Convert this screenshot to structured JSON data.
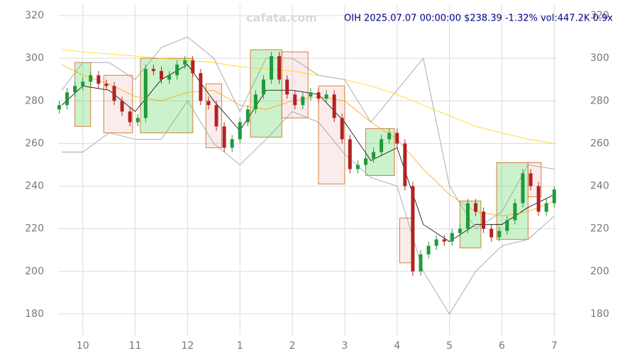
{
  "chart_data": {
    "type": "candlestick",
    "title": "OIH 2025.07.07 00:00:00 $238.39 -1.32% vol:447.2K 0.9x",
    "watermark": "cafata.com",
    "xlim": [
      -0.47,
      9.05
    ],
    "xticks": [
      {
        "value": 0,
        "label": "10"
      },
      {
        "value": 1,
        "label": "11"
      },
      {
        "value": 2,
        "label": "12"
      },
      {
        "value": 3,
        "label": "1"
      },
      {
        "value": 4,
        "label": "2"
      },
      {
        "value": 5,
        "label": "3"
      },
      {
        "value": 6,
        "label": "4"
      },
      {
        "value": 7,
        "label": "5"
      },
      {
        "value": 8,
        "label": "6"
      },
      {
        "value": 9,
        "label": "7"
      }
    ],
    "ylim": [
      170,
      325
    ],
    "yticks": [
      180,
      200,
      220,
      240,
      260,
      280,
      300,
      320
    ],
    "grid": true,
    "up_color": "#1f9a3a",
    "down_color": "#b22222",
    "x": [
      -0.45,
      -0.3,
      -0.15,
      0,
      0.15,
      0.3,
      0.45,
      0.6,
      0.75,
      0.9,
      1.05,
      1.2,
      1.35,
      1.5,
      1.65,
      1.8,
      1.95,
      2.1,
      2.25,
      2.4,
      2.55,
      2.7,
      2.85,
      3.0,
      3.15,
      3.3,
      3.45,
      3.6,
      3.75,
      3.9,
      4.05,
      4.2,
      4.35,
      4.5,
      4.65,
      4.8,
      4.95,
      5.1,
      5.25,
      5.4,
      5.55,
      5.7,
      5.85,
      6.0,
      6.15,
      6.3,
      6.45,
      6.6,
      6.75,
      6.9,
      7.05,
      7.2,
      7.35,
      7.5,
      7.65,
      7.8,
      7.95,
      8.1,
      8.25,
      8.4,
      8.55,
      8.7,
      8.85,
      9.0
    ],
    "open": [
      276,
      278,
      284,
      287,
      289,
      292,
      288,
      287,
      280,
      275,
      270,
      272,
      295,
      294,
      290,
      292,
      297,
      299,
      293,
      280,
      278,
      268,
      258,
      262,
      270,
      276,
      283,
      290,
      301,
      290,
      283,
      278,
      282,
      284,
      281,
      283,
      272,
      262,
      248,
      250,
      253,
      256,
      262,
      265,
      260,
      240,
      200,
      208,
      212,
      215,
      214,
      218,
      220,
      232,
      228,
      220,
      216,
      219,
      224,
      232,
      246,
      240,
      228,
      232
    ],
    "high": [
      280,
      286,
      289,
      291,
      294,
      294,
      290,
      289,
      282,
      277,
      274,
      297,
      297,
      296,
      294,
      299,
      301,
      301,
      295,
      282,
      280,
      270,
      264,
      272,
      278,
      285,
      292,
      303,
      303,
      292,
      285,
      284,
      286,
      286,
      285,
      285,
      274,
      264,
      252,
      255,
      258,
      264,
      267,
      267,
      262,
      242,
      210,
      214,
      217,
      217,
      220,
      222,
      234,
      234,
      230,
      222,
      221,
      226,
      234,
      248,
      248,
      242,
      234,
      240
    ],
    "low": [
      274,
      276,
      282,
      285,
      287,
      286,
      285,
      278,
      273,
      268,
      268,
      270,
      292,
      288,
      288,
      290,
      295,
      291,
      278,
      276,
      266,
      256,
      256,
      260,
      268,
      274,
      281,
      288,
      288,
      281,
      276,
      276,
      280,
      279,
      279,
      270,
      260,
      246,
      246,
      248,
      251,
      254,
      260,
      258,
      238,
      198,
      198,
      206,
      210,
      212,
      212,
      216,
      218,
      226,
      218,
      214,
      214,
      217,
      222,
      230,
      238,
      226,
      226,
      230
    ],
    "close": [
      278,
      284,
      287,
      289,
      292,
      288,
      287,
      280,
      275,
      270,
      272,
      295,
      294,
      290,
      292,
      297,
      299,
      293,
      280,
      278,
      268,
      258,
      262,
      270,
      276,
      283,
      290,
      301,
      290,
      283,
      278,
      282,
      284,
      281,
      283,
      272,
      262,
      248,
      250,
      253,
      256,
      262,
      265,
      260,
      240,
      200,
      208,
      212,
      215,
      214,
      218,
      220,
      232,
      228,
      220,
      216,
      219,
      224,
      232,
      246,
      240,
      228,
      232,
      238.39
    ],
    "lines": [
      {
        "color": "#000000",
        "x": [
          -0.4,
          0,
          0.5,
          1,
          1.5,
          2,
          2.5,
          3,
          3.5,
          4,
          4.5,
          5,
          5.5,
          6,
          6.5,
          7,
          7.5,
          8,
          8.5,
          9
        ],
        "values": [
          278,
          287,
          285,
          275,
          290,
          297,
          280,
          266,
          285,
          285,
          283,
          270,
          252,
          258,
          222,
          214,
          222,
          222,
          230,
          236
        ]
      },
      {
        "color": "#ffa500",
        "x": [
          -0.4,
          0,
          0.5,
          1,
          1.5,
          2,
          2.5,
          3,
          3.5,
          4,
          4.5,
          5,
          5.5,
          6,
          6.5,
          7,
          7.5,
          8,
          8.5,
          9
        ],
        "values": [
          297,
          292,
          288,
          282,
          280,
          284,
          285,
          278,
          276,
          280,
          282,
          280,
          270,
          262,
          248,
          236,
          228,
          226,
          228,
          233
        ]
      },
      {
        "color": "#ffd700",
        "x": [
          -0.4,
          0,
          0.5,
          1,
          1.5,
          2,
          2.5,
          3,
          3.5,
          4,
          4.5,
          5,
          5.5,
          6,
          6.5,
          7,
          7.5,
          8,
          8.5,
          9
        ],
        "values": [
          304,
          303,
          302,
          301,
          300,
          299,
          298,
          296,
          295,
          294,
          292,
          290,
          287,
          283,
          278,
          273,
          268,
          265,
          262,
          260
        ]
      },
      {
        "color": "#999999",
        "x": [
          -0.4,
          0,
          0.5,
          1,
          1.5,
          2,
          2.5,
          3,
          3.5,
          4,
          4.5,
          5,
          5.5,
          6,
          6.5,
          7,
          7.5,
          8,
          8.5,
          9
        ],
        "values": [
          285,
          298,
          298,
          290,
          305,
          310,
          300,
          275,
          300,
          300,
          292,
          290,
          270,
          285,
          300,
          240,
          220,
          228,
          250,
          248
        ]
      },
      {
        "color": "#999999",
        "x": [
          -0.4,
          0,
          0.5,
          1,
          1.5,
          2,
          2.5,
          3,
          3.5,
          4,
          4.5,
          5,
          5.5,
          6,
          6.5,
          7,
          7.5,
          8,
          8.5,
          9
        ],
        "values": [
          256,
          256,
          265,
          262,
          262,
          280,
          260,
          250,
          262,
          275,
          270,
          255,
          244,
          240,
          200,
          180,
          200,
          212,
          215,
          226
        ]
      }
    ],
    "boxes": [
      {
        "color": "#33cc33",
        "x": [
          -0.15,
          0.15
        ],
        "y": [
          268,
          298
        ]
      },
      {
        "color": "#e06060",
        "x": [
          0.4,
          0.95
        ],
        "y": [
          265,
          292
        ]
      },
      {
        "color": "#33cc33",
        "x": [
          1.1,
          2.1
        ],
        "y": [
          265,
          300
        ]
      },
      {
        "color": "#e06060",
        "x": [
          2.35,
          2.65
        ],
        "y": [
          258,
          288
        ]
      },
      {
        "color": "#33cc33",
        "x": [
          3.2,
          3.8
        ],
        "y": [
          263,
          304
        ]
      },
      {
        "color": "#e06060",
        "x": [
          3.8,
          4.3
        ],
        "y": [
          272,
          303
        ]
      },
      {
        "color": "#e06060",
        "x": [
          4.5,
          5.0
        ],
        "y": [
          241,
          287
        ]
      },
      {
        "color": "#33cc33",
        "x": [
          5.4,
          5.95
        ],
        "y": [
          245,
          267
        ]
      },
      {
        "color": "#e06060",
        "x": [
          6.05,
          6.3
        ],
        "y": [
          204,
          225
        ]
      },
      {
        "color": "#33cc33",
        "x": [
          7.2,
          7.6
        ],
        "y": [
          211,
          233
        ]
      },
      {
        "color": "#33cc33",
        "x": [
          7.9,
          8.5
        ],
        "y": [
          215,
          251
        ]
      },
      {
        "color": "#e06060",
        "x": [
          8.5,
          8.75
        ],
        "y": [
          235,
          251
        ]
      }
    ]
  }
}
